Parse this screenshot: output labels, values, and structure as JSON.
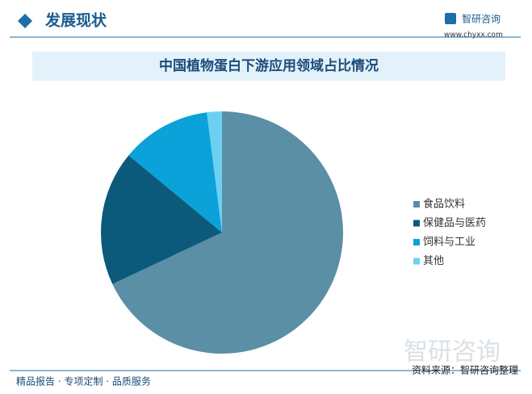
{
  "header": {
    "title": "发展现状",
    "logo": "智研咨询",
    "url": "www.chyxx.com"
  },
  "chart_data": {
    "type": "pie",
    "title": "中国植物蛋白下游应用领域占比情况",
    "categories": [
      "食品饮料",
      "保健品与医药",
      "饲料与工业",
      "其他"
    ],
    "values": [
      68,
      18,
      12,
      2
    ],
    "colors": [
      "#5b8fa6",
      "#0b5a7b",
      "#0aa2d8",
      "#6dd0f2"
    ],
    "legend": "right"
  },
  "watermark": "智研咨询",
  "footer": {
    "slogan": "精品报告 · 专项定制 · 品质服务",
    "source": "资料来源：智研咨询整理"
  }
}
